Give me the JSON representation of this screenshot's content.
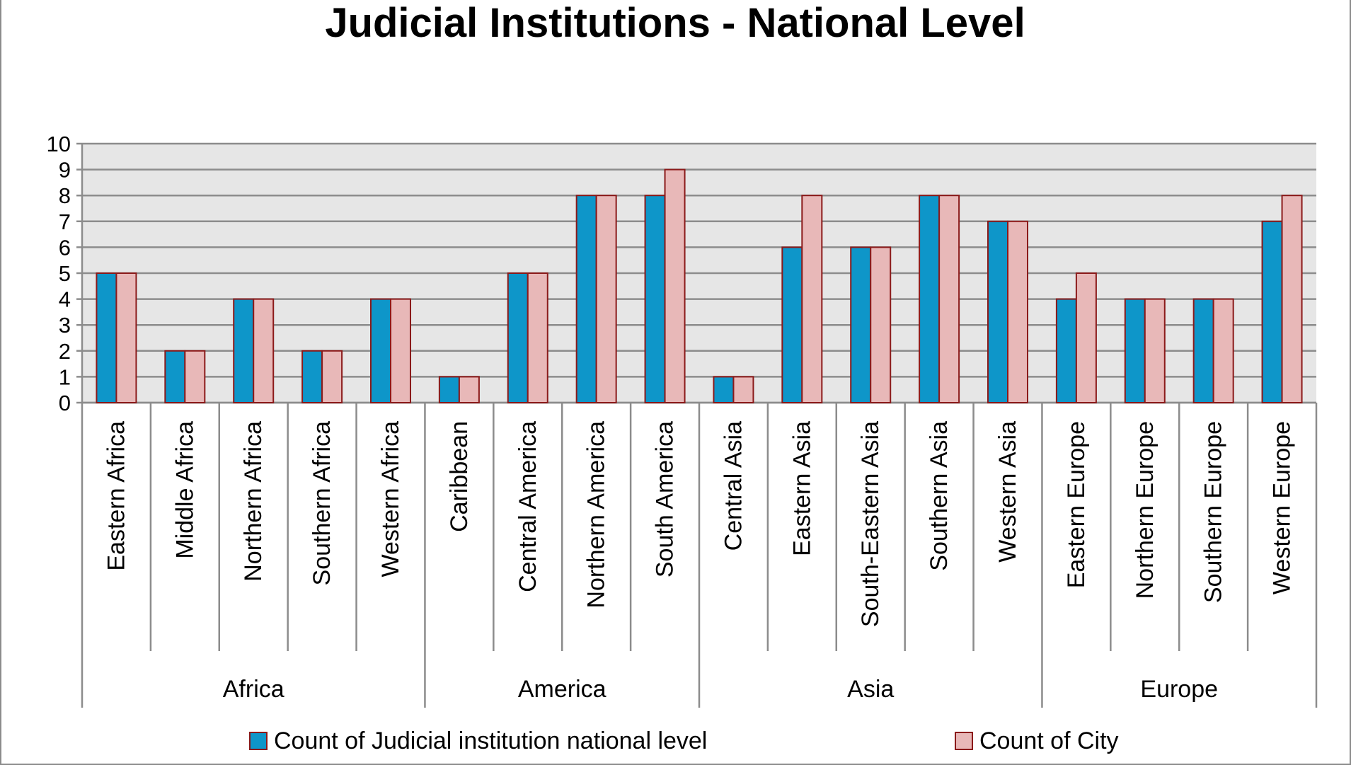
{
  "chart_data": {
    "type": "bar",
    "title": "Judicial Institutions - National Level",
    "xlabel": "",
    "ylabel": "",
    "ylim": [
      0,
      10
    ],
    "yticks": [
      "0",
      "1",
      "2",
      "3",
      "4",
      "5",
      "6",
      "7",
      "8",
      "9",
      "10"
    ],
    "grid": true,
    "legend_position": "bottom",
    "categories": [
      "Eastern Africa",
      "Middle Africa",
      "Northern Africa",
      "Southern Africa",
      "Western Africa",
      "Caribbean",
      "Central America",
      "Northern America",
      "South America",
      "Central Asia",
      "Eastern Asia",
      "South-Eastern Asia",
      "Southern Asia",
      "Western Asia",
      "Eastern Europe",
      "Northern Europe",
      "Southern Europe",
      "Western Europe"
    ],
    "groups": [
      {
        "name": "Africa",
        "count": 5
      },
      {
        "name": "America",
        "count": 4
      },
      {
        "name": "Asia",
        "count": 5
      },
      {
        "name": "Europe",
        "count": 4
      }
    ],
    "series": [
      {
        "name": "Count of Judicial institution national level",
        "color": "#0e96c9",
        "values": [
          5,
          2,
          4,
          2,
          4,
          1,
          5,
          8,
          8,
          1,
          6,
          6,
          8,
          7,
          4,
          4,
          4,
          7
        ]
      },
      {
        "name": "Count of City",
        "color": "#e8b8b8",
        "values": [
          5,
          2,
          4,
          2,
          4,
          1,
          5,
          8,
          9,
          1,
          8,
          6,
          8,
          7,
          5,
          4,
          4,
          8
        ]
      }
    ]
  },
  "colors": {
    "plot_background": "#e6e6e6",
    "gridline": "#8c8c8c",
    "bar_outline": "#8b1a1a"
  }
}
